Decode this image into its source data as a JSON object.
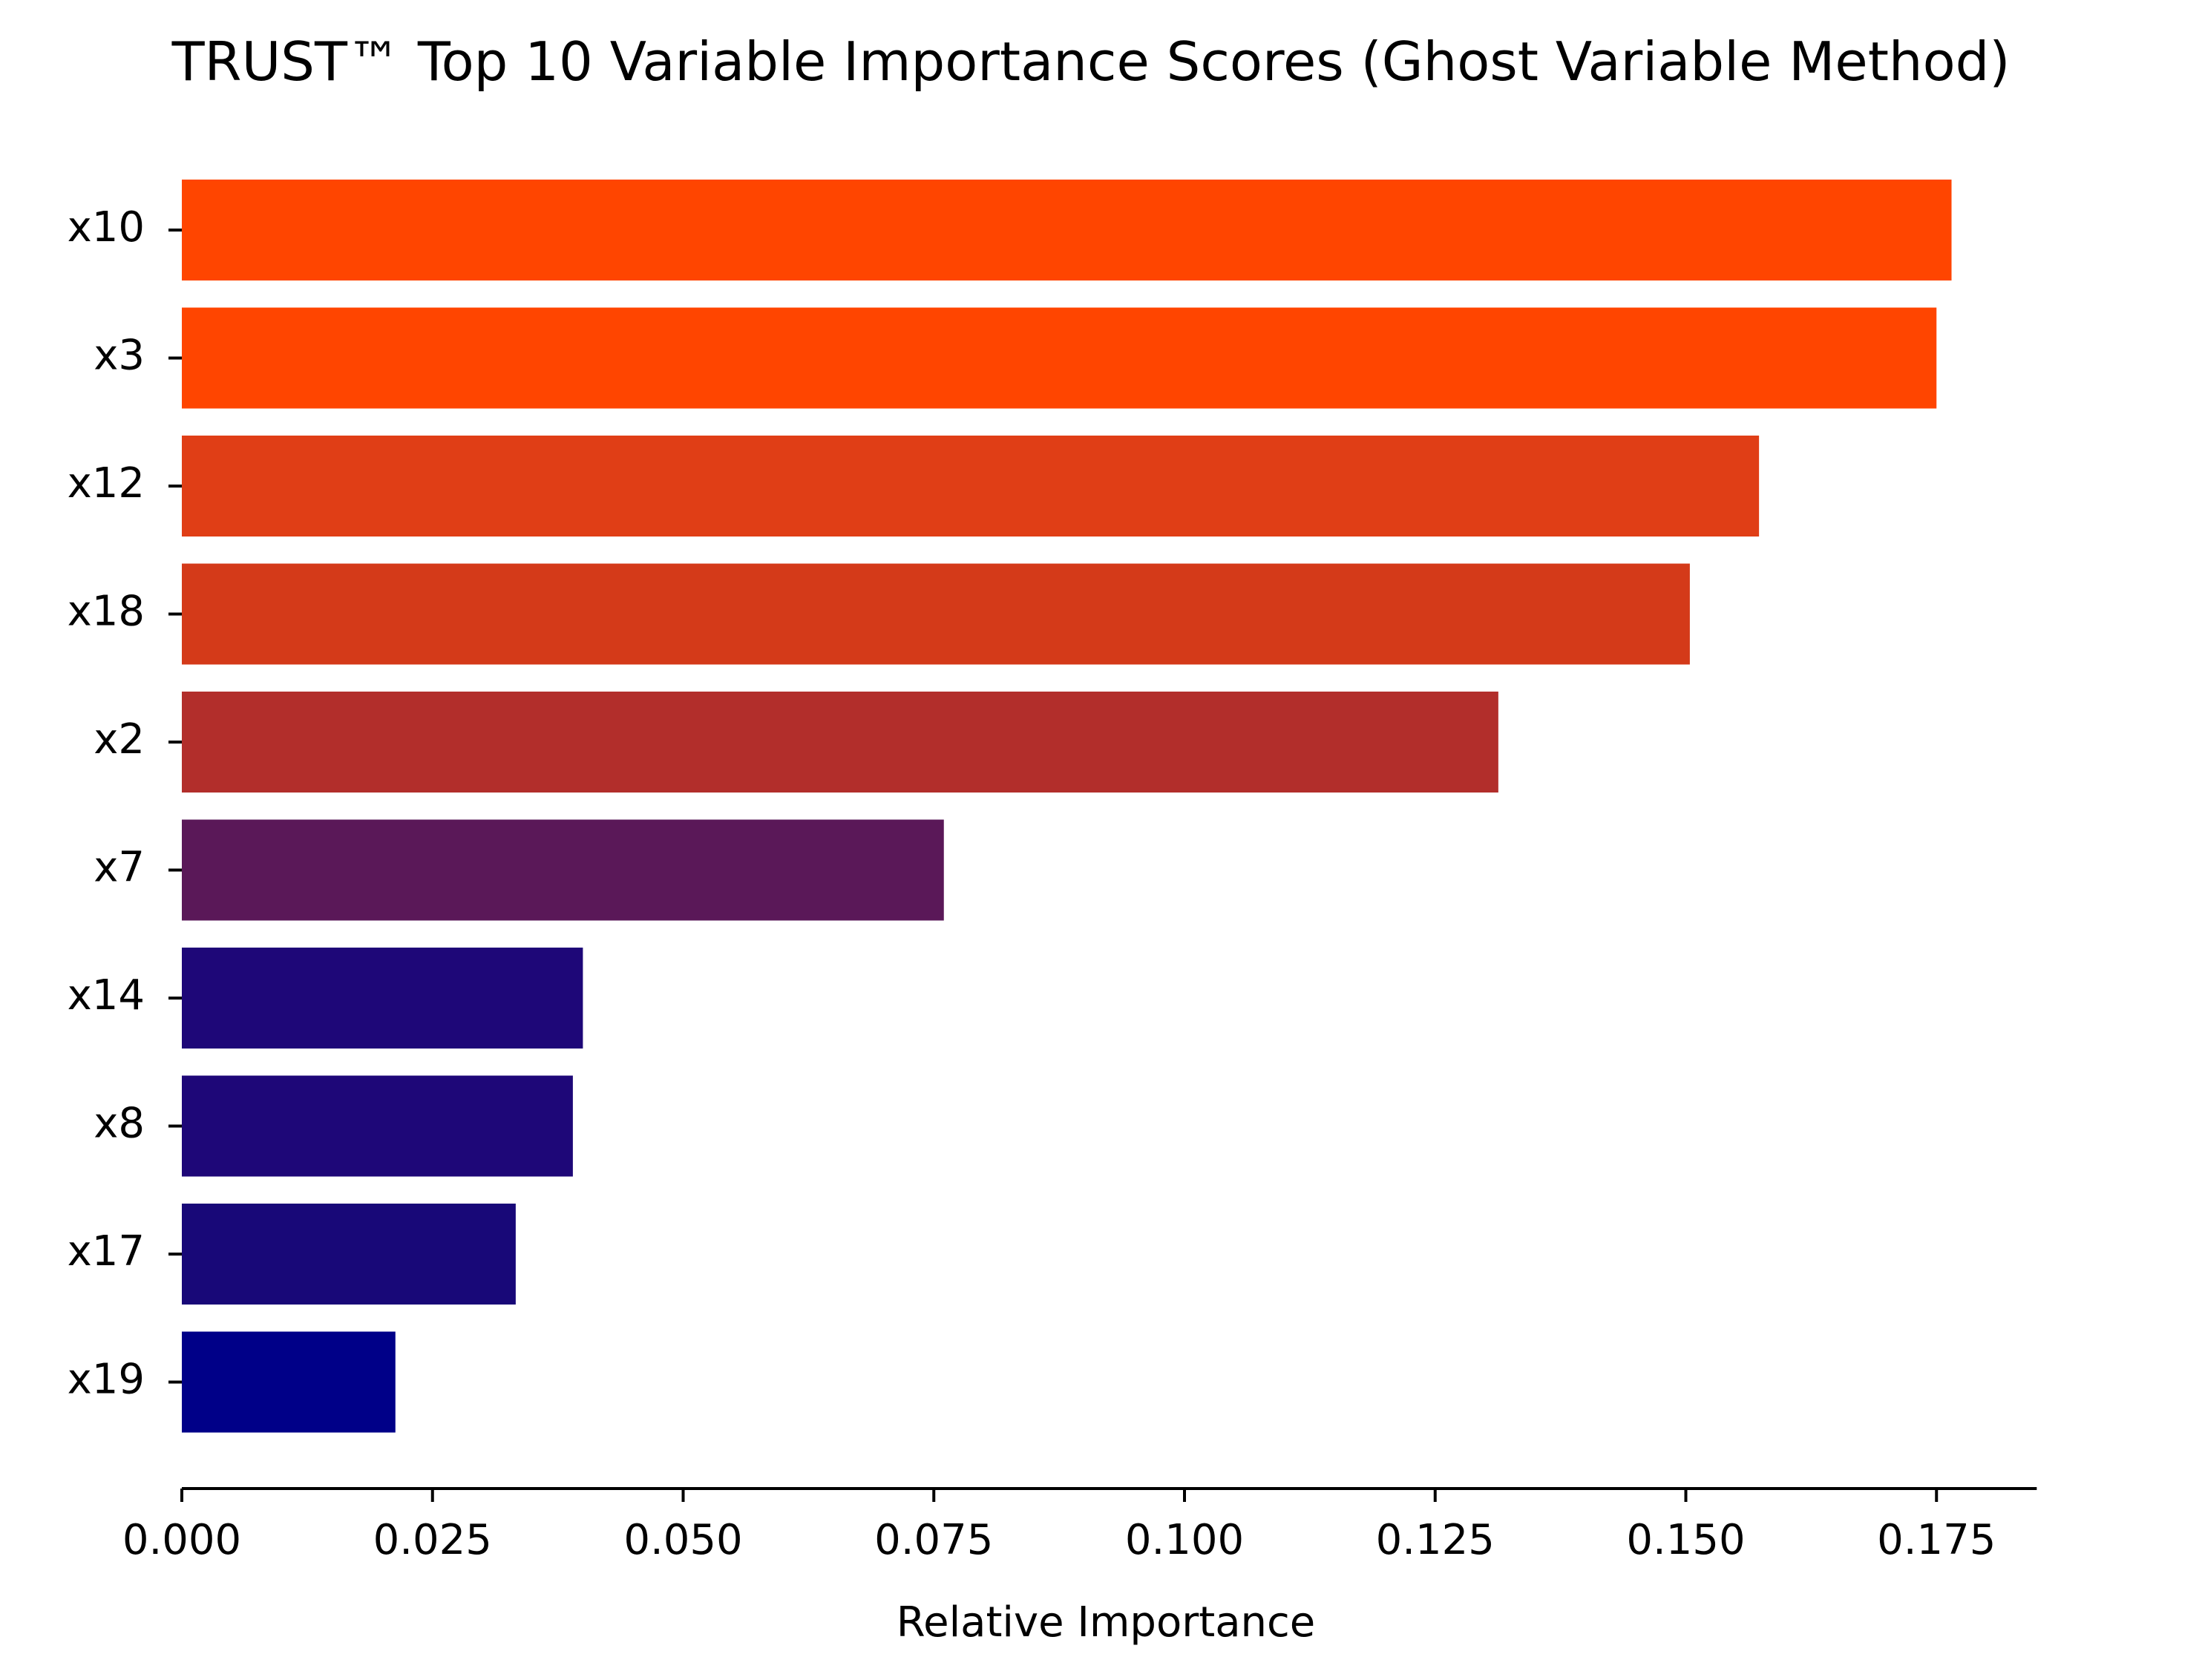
{
  "chart_data": {
    "type": "bar",
    "orientation": "horizontal",
    "title": "TRUST™ Top 10 Variable Importance Scores (Ghost Variable Method)",
    "xlabel": "Relative Importance",
    "ylabel": "",
    "categories": [
      "x10",
      "x3",
      "x12",
      "x18",
      "x2",
      "x7",
      "x14",
      "x8",
      "x17",
      "x19"
    ],
    "values": [
      0.1765,
      0.175,
      0.1573,
      0.1504,
      0.1313,
      0.076,
      0.04,
      0.039,
      0.0333,
      0.0213
    ],
    "colors": [
      "#ff4500",
      "#ff4500",
      "#e03e16",
      "#d43a19",
      "#b22e2b",
      "#5a1858",
      "#1e0778",
      "#1e0778",
      "#180878",
      "#000088"
    ],
    "xlim": [
      0,
      0.185
    ],
    "xticks": [
      "0.000",
      "0.025",
      "0.050",
      "0.075",
      "0.100",
      "0.125",
      "0.150",
      "0.175"
    ],
    "xtick_values": [
      0,
      0.025,
      0.05,
      0.075,
      0.1,
      0.125,
      0.15,
      0.175
    ],
    "grid": false,
    "legend": "none"
  }
}
